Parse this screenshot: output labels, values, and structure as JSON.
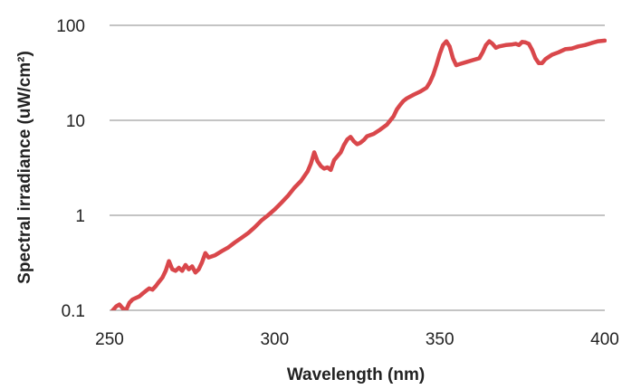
{
  "chart_data": {
    "type": "line",
    "title": "",
    "xlabel": "Wavelength (nm)",
    "ylabel": "Spectral irradiance (uW/cm²)",
    "xlim": [
      250,
      400
    ],
    "ylim": [
      0.1,
      100
    ],
    "yscale": "log",
    "x_ticks": [
      "250",
      "300",
      "350",
      "400"
    ],
    "y_ticks": [
      "0.1",
      "1",
      "10",
      "100"
    ],
    "grid": "horizontal",
    "legend": "none",
    "series": [
      {
        "color": "#d9474b",
        "x": [
          250,
          251,
          252,
          253,
          254,
          255,
          256,
          257,
          258,
          259,
          260,
          261,
          262,
          263,
          264,
          265,
          266,
          267,
          268,
          269,
          270,
          271,
          272,
          273,
          274,
          275,
          276,
          277,
          278,
          279,
          280,
          282,
          284,
          286,
          288,
          290,
          292,
          294,
          296,
          298,
          300,
          302,
          304,
          306,
          308,
          310,
          311,
          312,
          313,
          314,
          315,
          316,
          317,
          318,
          320,
          321,
          322,
          323,
          324,
          325,
          326,
          327,
          328,
          330,
          332,
          334,
          336,
          337,
          338,
          339,
          340,
          342,
          344,
          346,
          347,
          348,
          349,
          350,
          351,
          352,
          353,
          354,
          355,
          356,
          358,
          360,
          362,
          363,
          364,
          365,
          366,
          367,
          368,
          370,
          372,
          373,
          374,
          375,
          376,
          377,
          378,
          379,
          380,
          381,
          382,
          384,
          386,
          388,
          390,
          392,
          394,
          396,
          398,
          400
        ],
        "values": [
          0.09,
          0.1,
          0.11,
          0.115,
          0.105,
          0.1,
          0.12,
          0.13,
          0.135,
          0.14,
          0.15,
          0.16,
          0.17,
          0.165,
          0.18,
          0.2,
          0.22,
          0.26,
          0.33,
          0.27,
          0.26,
          0.28,
          0.26,
          0.3,
          0.27,
          0.29,
          0.25,
          0.27,
          0.32,
          0.4,
          0.36,
          0.38,
          0.42,
          0.46,
          0.52,
          0.58,
          0.65,
          0.75,
          0.88,
          1.0,
          1.15,
          1.35,
          1.6,
          1.95,
          2.3,
          2.9,
          3.5,
          4.6,
          3.7,
          3.3,
          3.1,
          3.2,
          3.0,
          3.8,
          4.6,
          5.5,
          6.3,
          6.7,
          6.0,
          5.6,
          5.8,
          6.2,
          6.8,
          7.2,
          8.0,
          9.0,
          11.0,
          13.0,
          14.5,
          16.0,
          17.0,
          18.5,
          20.0,
          22.0,
          25.0,
          30.0,
          38.0,
          50.0,
          62.0,
          68.0,
          60.0,
          45.0,
          38.0,
          39.0,
          41.0,
          43.0,
          45.0,
          52.0,
          62.0,
          68.0,
          64.0,
          58.0,
          60.0,
          62.0,
          63.0,
          64.0,
          62.0,
          67.0,
          66.0,
          64.0,
          55.0,
          45.0,
          40.0,
          40.0,
          44.0,
          49.0,
          52.0,
          56.0,
          57.0,
          60.0,
          62.0,
          65.0,
          68.0,
          69.0
        ]
      }
    ]
  }
}
